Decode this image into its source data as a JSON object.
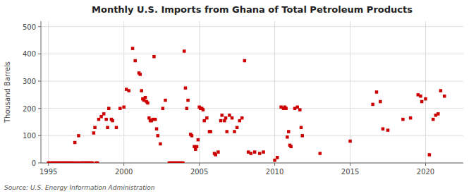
{
  "chart_data": {
    "type": "scatter",
    "title": "Monthly U.S. Imports from Ghana of Total Petroleum Products",
    "ylabel": "Thousand Barrels",
    "annotations": [
      "Source: U.S. Energy Information Administration"
    ],
    "xlim": [
      1994.5,
      2022.5
    ],
    "ylim": [
      0,
      520
    ],
    "xticks": [
      1995,
      2000,
      2005,
      2010,
      2015,
      2020
    ],
    "yticks": [
      0,
      100,
      200,
      300,
      400,
      500
    ],
    "grid": true,
    "color": "#cc0000",
    "marker": "square",
    "x": [
      1995.0,
      1995.08,
      1995.17,
      1995.25,
      1995.33,
      1995.42,
      1995.5,
      1995.58,
      1995.67,
      1995.75,
      1995.83,
      1995.92,
      1996.0,
      1996.08,
      1996.17,
      1996.25,
      1996.33,
      1996.42,
      1996.5,
      1996.58,
      1996.67,
      1996.75,
      1996.83,
      1996.92,
      1997.0,
      1997.08,
      1997.17,
      1997.25,
      1997.33,
      1997.42,
      1997.5,
      1997.58,
      1997.67,
      1997.75,
      1997.83,
      1997.92,
      1998.0,
      1998.08,
      1998.17,
      1998.25,
      1998.33,
      1998.5,
      1998.67,
      1998.83,
      1998.92,
      1999.0,
      1999.17,
      1999.25,
      1999.5,
      1999.75,
      2000.0,
      2000.17,
      2000.33,
      2000.58,
      2000.75,
      2001.0,
      2001.08,
      2001.17,
      2001.25,
      2001.33,
      2001.42,
      2001.5,
      2001.58,
      2001.67,
      2001.75,
      2001.83,
      2001.92,
      2002.0,
      2002.08,
      2002.17,
      2002.25,
      2002.42,
      2002.58,
      2002.75,
      2003.0,
      2003.08,
      2003.17,
      2003.25,
      2003.33,
      2003.42,
      2003.5,
      2003.58,
      2003.67,
      2003.75,
      2003.83,
      2003.92,
      2004.0,
      2004.08,
      2004.17,
      2004.25,
      2004.42,
      2004.5,
      2004.67,
      2004.75,
      2004.83,
      2004.92,
      2005.0,
      2005.08,
      2005.17,
      2005.25,
      2005.33,
      2005.5,
      2005.67,
      2005.75,
      2006.0,
      2006.08,
      2006.25,
      2006.42,
      2006.5,
      2006.67,
      2006.75,
      2006.83,
      2007.0,
      2007.17,
      2007.33,
      2007.5,
      2007.67,
      2007.83,
      2008.0,
      2008.25,
      2008.42,
      2008.67,
      2009.0,
      2009.25,
      2010.0,
      2010.17,
      2010.42,
      2010.58,
      2010.67,
      2010.75,
      2010.83,
      2010.92,
      2011.0,
      2011.08,
      2011.33,
      2011.5,
      2011.67,
      2011.75,
      2011.83,
      2013.0,
      2015.0,
      2016.5,
      2016.75,
      2017.0,
      2017.17,
      2017.5,
      2018.5,
      2019.0,
      2019.5,
      2019.67,
      2019.75,
      2020.0,
      2020.25,
      2020.5,
      2020.67,
      2020.83,
      2021.0,
      2021.25
    ],
    "values": [
      0,
      0,
      0,
      0,
      0,
      0,
      0,
      0,
      0,
      0,
      0,
      0,
      0,
      0,
      0,
      0,
      0,
      0,
      0,
      0,
      0,
      75,
      0,
      0,
      100,
      0,
      0,
      0,
      0,
      0,
      0,
      0,
      0,
      0,
      0,
      0,
      110,
      130,
      0,
      0,
      160,
      170,
      180,
      160,
      130,
      200,
      160,
      155,
      130,
      200,
      205,
      270,
      265,
      420,
      375,
      330,
      325,
      265,
      235,
      230,
      240,
      225,
      220,
      165,
      155,
      155,
      160,
      390,
      160,
      125,
      100,
      70,
      200,
      230,
      0,
      0,
      0,
      0,
      0,
      0,
      0,
      0,
      0,
      0,
      0,
      0,
      410,
      275,
      200,
      230,
      105,
      100,
      60,
      50,
      60,
      85,
      205,
      200,
      200,
      195,
      155,
      165,
      115,
      115,
      35,
      30,
      40,
      155,
      175,
      155,
      165,
      115,
      175,
      165,
      115,
      130,
      155,
      165,
      375,
      40,
      35,
      40,
      35,
      40,
      10,
      20,
      205,
      200,
      205,
      200,
      95,
      115,
      65,
      60,
      200,
      205,
      195,
      130,
      100,
      35,
      80,
      215,
      260,
      225,
      125,
      120,
      160,
      165,
      250,
      245,
      225,
      235,
      30,
      160,
      175,
      180,
      265,
      245
    ]
  }
}
